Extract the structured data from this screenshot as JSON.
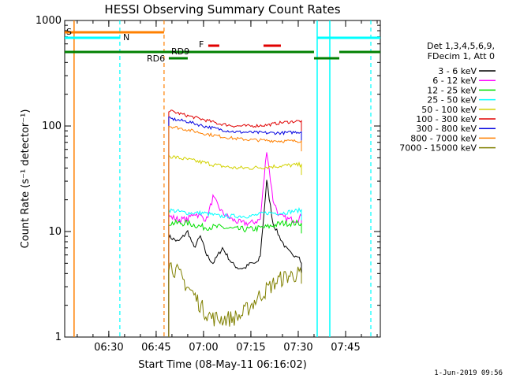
{
  "chart_data": {
    "type": "line",
    "title": "HESSI Observing Summary Count Rates",
    "xlabel": "Start Time (08-May-11 06:16:02)",
    "ylabel": "Count Rate (s⁻¹ detector⁻¹)",
    "y_scale": "log",
    "ylim": [
      1,
      1000
    ],
    "xlim": [
      "06:16:02",
      "07:56"
    ],
    "x_ticks": [
      "06:30",
      "06:45",
      "07:00",
      "07:15",
      "07:30",
      "07:45"
    ],
    "y_ticks": [
      "1",
      "10",
      "100",
      "1000"
    ],
    "timestamp": "1-Jun-2019 09:56",
    "legend_header": [
      "Det 1,3,4,5,6,9,",
      "FDecim 1, Att 0"
    ],
    "legend_position": "right",
    "series": [
      {
        "name": "3 - 6 keV",
        "color": "#000000",
        "x": [
          "06:49:00",
          "06:52:00",
          "06:55:00",
          "06:57:00",
          "06:59:00",
          "07:01:00",
          "07:03:00",
          "07:06:00",
          "07:09:00",
          "07:11:00",
          "07:13:00",
          "07:15:00",
          "07:17:00",
          "07:18:00",
          "07:20:00",
          "07:22:00",
          "07:24:00",
          "07:26:00",
          "07:28:00",
          "07:30:00",
          "07:31:00"
        ],
        "y": [
          9,
          8,
          10,
          7,
          9,
          6,
          5,
          7,
          5,
          4.5,
          4.5,
          5,
          5,
          6,
          30,
          12,
          9,
          7,
          6,
          6,
          5
        ]
      },
      {
        "name": "6 - 12 keV",
        "color": "#ff00ff",
        "x": [
          "06:49:00",
          "06:52:00",
          "06:55:00",
          "06:57:00",
          "06:59:00",
          "07:01:00",
          "07:03:00",
          "07:06:00",
          "07:09:00",
          "07:12:00",
          "07:15:00",
          "07:18:00",
          "07:20:00",
          "07:22:00",
          "07:24:00",
          "07:27:00",
          "07:30:00",
          "07:31:00"
        ],
        "y": [
          14,
          13,
          13,
          15,
          14,
          13,
          21,
          15,
          13,
          12,
          12,
          13,
          60,
          20,
          14,
          13,
          13,
          14
        ]
      },
      {
        "name": "12 - 25 keV",
        "color": "#00e000",
        "x": [
          "06:49:00",
          "06:55:00",
          "07:00:00",
          "07:05:00",
          "07:10:00",
          "07:15:00",
          "07:20:00",
          "07:25:00",
          "07:31:00"
        ],
        "y": [
          12,
          12,
          11,
          11,
          10.5,
          10.5,
          11,
          12,
          12
        ]
      },
      {
        "name": "25 - 50 keV",
        "color": "#00ffff",
        "x": [
          "06:49:00",
          "06:55:00",
          "07:00:00",
          "07:05:00",
          "07:10:00",
          "07:15:00",
          "07:20:00",
          "07:25:00",
          "07:31:00"
        ],
        "y": [
          16,
          15,
          15,
          14,
          14,
          14,
          15,
          15,
          16
        ]
      },
      {
        "name": "50 - 100 keV",
        "color": "#d2d200",
        "x": [
          "06:49:00",
          "06:55:00",
          "07:00:00",
          "07:05:00",
          "07:10:00",
          "07:15:00",
          "07:20:00",
          "07:25:00",
          "07:31:00"
        ],
        "y": [
          52,
          48,
          45,
          42,
          40,
          40,
          41,
          42,
          43
        ]
      },
      {
        "name": "100 - 300 keV",
        "color": "#e00000",
        "x": [
          "06:49:00",
          "06:55:00",
          "07:00:00",
          "07:05:00",
          "07:10:00",
          "07:15:00",
          "07:20:00",
          "07:25:00",
          "07:31:00"
        ],
        "y": [
          140,
          125,
          115,
          105,
          100,
          100,
          102,
          108,
          112
        ]
      },
      {
        "name": "300 - 800 keV",
        "color": "#0000e0",
        "x": [
          "06:49:00",
          "06:55:00",
          "07:00:00",
          "07:05:00",
          "07:10:00",
          "07:15:00",
          "07:20:00",
          "07:25:00",
          "07:31:00"
        ],
        "y": [
          118,
          110,
          100,
          93,
          88,
          87,
          86,
          86,
          88
        ]
      },
      {
        "name": "800 - 7000 keV",
        "color": "#ff8000",
        "x": [
          "06:49:00",
          "06:55:00",
          "07:00:00",
          "07:05:00",
          "07:10:00",
          "07:15:00",
          "07:20:00",
          "07:25:00",
          "07:31:00"
        ],
        "y": [
          100,
          92,
          85,
          80,
          76,
          74,
          73,
          72,
          72
        ]
      },
      {
        "name": "7000 - 15000 keV",
        "color": "#808000",
        "x": [
          "06:49:00",
          "06:52:00",
          "06:55:00",
          "06:57:00",
          "07:00:00",
          "07:03:00",
          "07:06:00",
          "07:09:00",
          "07:12:00",
          "07:15:00",
          "07:18:00",
          "07:21:00",
          "07:24:00",
          "07:27:00",
          "07:31:00"
        ],
        "y": [
          5,
          4,
          3,
          2.5,
          1.8,
          1.5,
          1.5,
          1.5,
          1.6,
          2,
          2.5,
          3,
          3.5,
          3.8,
          4
        ]
      }
    ],
    "annotations": [
      {
        "text": "S",
        "color": "#ff8000"
      },
      {
        "text": "N",
        "color": "#00ffff"
      },
      {
        "text": "F",
        "color": "#e00000"
      },
      {
        "text": "RD9",
        "color": "#008000"
      },
      {
        "text": "RD6",
        "color": "#008000"
      }
    ]
  }
}
